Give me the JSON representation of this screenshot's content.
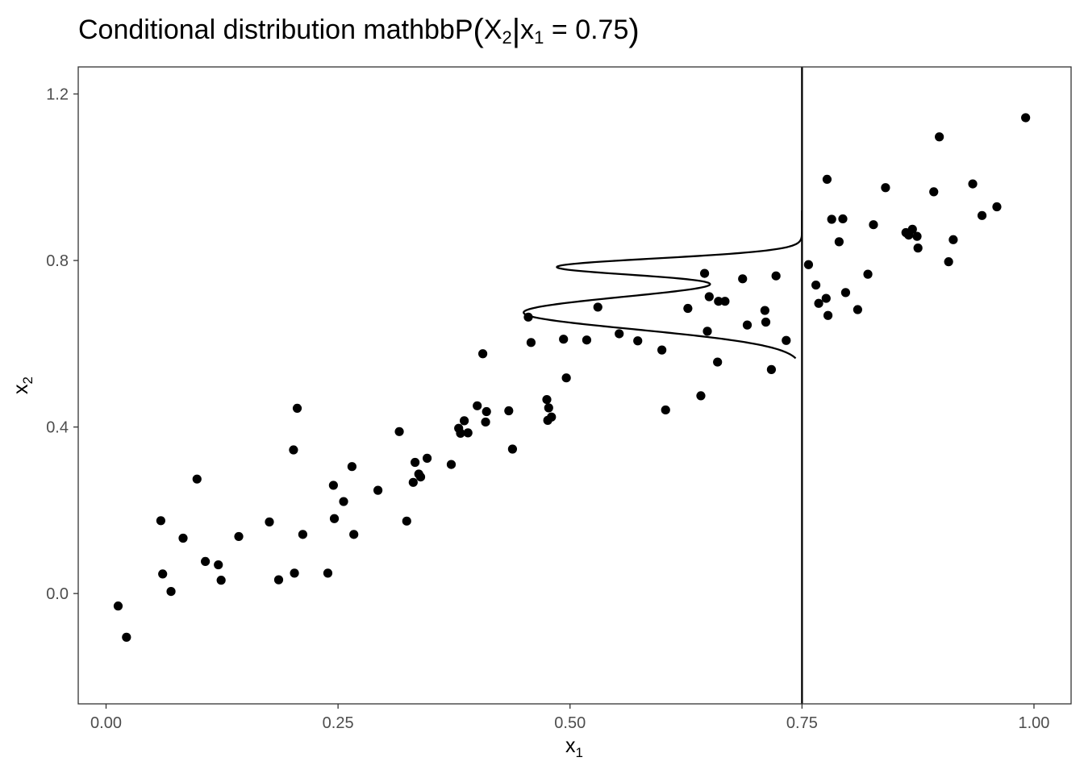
{
  "chart_data": {
    "type": "scatter",
    "title": {
      "prefix": "Conditional distribution mathbbP",
      "var": "X",
      "var_sub": "2",
      "cond_var": "x",
      "cond_sub": "1",
      "equals": "=",
      "value": "0.75"
    },
    "xlabel": {
      "main": "x",
      "sub": "1"
    },
    "ylabel": {
      "main": "x",
      "sub": "2"
    },
    "xlim": [
      -0.03,
      1.04
    ],
    "ylim": [
      -0.265,
      1.265
    ],
    "xticks": [
      0.0,
      0.25,
      0.5,
      0.75,
      1.0
    ],
    "xtick_labels": [
      "0.00",
      "0.25",
      "0.50",
      "0.75",
      "1.00"
    ],
    "yticks": [
      0.0,
      0.4,
      0.8,
      1.2
    ],
    "ytick_labels": [
      "0.0",
      "0.4",
      "0.8",
      "1.2"
    ],
    "grid": false,
    "vline_x": 0.75,
    "conditional_density": {
      "x0": 0.75,
      "components": [
        {
          "weight": 0.3,
          "mean": 0.785,
          "sd": 0.02
        },
        {
          "weight": 0.7,
          "mean": 0.675,
          "sd": 0.04
        }
      ],
      "peak_width": 0.3,
      "y_range": [
        0.565,
        0.92
      ]
    },
    "points": [
      [
        0.013,
        -0.03
      ],
      [
        0.022,
        -0.105
      ],
      [
        0.059,
        0.175
      ],
      [
        0.061,
        0.047
      ],
      [
        0.07,
        0.005
      ],
      [
        0.083,
        0.133
      ],
      [
        0.098,
        0.275
      ],
      [
        0.107,
        0.077
      ],
      [
        0.121,
        0.069
      ],
      [
        0.124,
        0.032
      ],
      [
        0.143,
        0.137
      ],
      [
        0.176,
        0.172
      ],
      [
        0.186,
        0.033
      ],
      [
        0.202,
        0.345
      ],
      [
        0.203,
        0.049
      ],
      [
        0.206,
        0.445
      ],
      [
        0.212,
        0.142
      ],
      [
        0.239,
        0.049
      ],
      [
        0.245,
        0.26
      ],
      [
        0.246,
        0.18
      ],
      [
        0.256,
        0.221
      ],
      [
        0.265,
        0.305
      ],
      [
        0.267,
        0.142
      ],
      [
        0.293,
        0.248
      ],
      [
        0.316,
        0.389
      ],
      [
        0.324,
        0.174
      ],
      [
        0.331,
        0.267
      ],
      [
        0.333,
        0.315
      ],
      [
        0.337,
        0.287
      ],
      [
        0.339,
        0.28
      ],
      [
        0.346,
        0.325
      ],
      [
        0.372,
        0.31
      ],
      [
        0.38,
        0.397
      ],
      [
        0.382,
        0.385
      ],
      [
        0.386,
        0.415
      ],
      [
        0.39,
        0.386
      ],
      [
        0.4,
        0.451
      ],
      [
        0.406,
        0.576
      ],
      [
        0.409,
        0.412
      ],
      [
        0.41,
        0.437
      ],
      [
        0.434,
        0.439
      ],
      [
        0.438,
        0.347
      ],
      [
        0.455,
        0.664
      ],
      [
        0.458,
        0.603
      ],
      [
        0.475,
        0.466
      ],
      [
        0.476,
        0.416
      ],
      [
        0.477,
        0.446
      ],
      [
        0.48,
        0.424
      ],
      [
        0.493,
        0.611
      ],
      [
        0.496,
        0.518
      ],
      [
        0.518,
        0.609
      ],
      [
        0.53,
        0.688
      ],
      [
        0.553,
        0.624
      ],
      [
        0.573,
        0.607
      ],
      [
        0.599,
        0.585
      ],
      [
        0.603,
        0.441
      ],
      [
        0.627,
        0.685
      ],
      [
        0.641,
        0.475
      ],
      [
        0.645,
        0.769
      ],
      [
        0.648,
        0.63
      ],
      [
        0.65,
        0.713
      ],
      [
        0.659,
        0.556
      ],
      [
        0.66,
        0.702
      ],
      [
        0.667,
        0.702
      ],
      [
        0.686,
        0.756
      ],
      [
        0.691,
        0.645
      ],
      [
        0.71,
        0.68
      ],
      [
        0.711,
        0.652
      ],
      [
        0.717,
        0.538
      ],
      [
        0.722,
        0.763
      ],
      [
        0.733,
        0.608
      ],
      [
        0.757,
        0.79
      ],
      [
        0.765,
        0.741
      ],
      [
        0.768,
        0.697
      ],
      [
        0.776,
        0.709
      ],
      [
        0.777,
        0.995
      ],
      [
        0.778,
        0.668
      ],
      [
        0.782,
        0.899
      ],
      [
        0.79,
        0.845
      ],
      [
        0.794,
        0.9
      ],
      [
        0.797,
        0.723
      ],
      [
        0.81,
        0.682
      ],
      [
        0.821,
        0.767
      ],
      [
        0.827,
        0.886
      ],
      [
        0.84,
        0.975
      ],
      [
        0.862,
        0.867
      ],
      [
        0.865,
        0.861
      ],
      [
        0.869,
        0.875
      ],
      [
        0.874,
        0.858
      ],
      [
        0.875,
        0.83
      ],
      [
        0.892,
        0.965
      ],
      [
        0.898,
        1.097
      ],
      [
        0.908,
        0.797
      ],
      [
        0.913,
        0.85
      ],
      [
        0.934,
        0.984
      ],
      [
        0.944,
        0.908
      ],
      [
        0.96,
        0.929
      ],
      [
        0.991,
        1.143
      ]
    ]
  }
}
